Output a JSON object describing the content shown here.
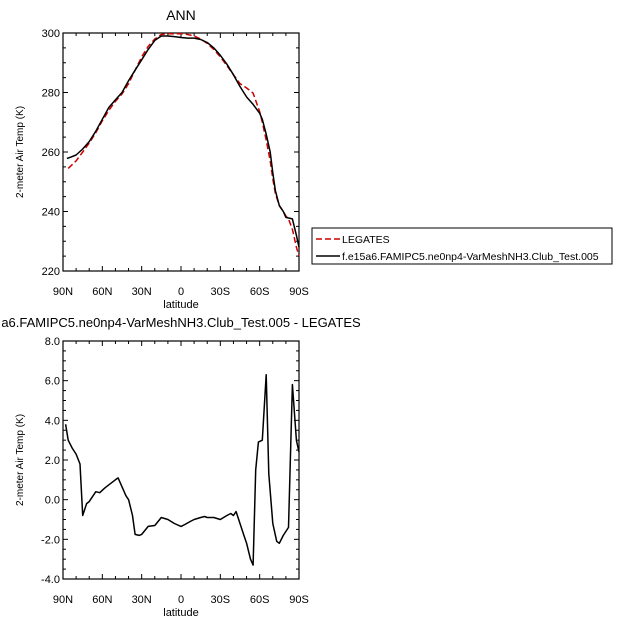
{
  "chart_data": [
    {
      "type": "line",
      "title": "ANN",
      "xlabel": "latitude",
      "ylabel": "2-meter Air Temp (K)",
      "xlim": [
        90,
        -90
      ],
      "ylim": [
        220,
        300
      ],
      "xtick_values": [
        90,
        60,
        30,
        0,
        -30,
        -60,
        -90
      ],
      "xtick_labels": [
        "90N",
        "60N",
        "30N",
        "0",
        "30S",
        "60S",
        "90S"
      ],
      "ytick_values": [
        220,
        240,
        260,
        280,
        300
      ],
      "ytick_labels": [
        "220",
        "240",
        "260",
        "280",
        "300"
      ],
      "legend": "right",
      "series": [
        {
          "name": "LEGATES",
          "color": "#cc0000",
          "style": "dashed",
          "x": [
            86,
            80,
            75,
            70,
            65,
            60,
            55,
            50,
            45,
            40,
            35,
            30,
            25,
            20,
            15,
            10,
            5,
            0,
            -5,
            -10,
            -15,
            -20,
            -25,
            -30,
            -35,
            -40,
            -45,
            -50,
            -55,
            -60,
            -62,
            -65,
            -68,
            -70,
            -72,
            -75,
            -78,
            -80,
            -82,
            -85,
            -88,
            -90
          ],
          "y": [
            254.5,
            257,
            260,
            263,
            266.5,
            270.5,
            274,
            277,
            279.5,
            283,
            287.5,
            292,
            295.5,
            298,
            299.5,
            299.8,
            299.7,
            299.8,
            299.5,
            299,
            298,
            296.5,
            294.5,
            292,
            289,
            286,
            283,
            281.5,
            279.8,
            273.5,
            270,
            264,
            257,
            251,
            246,
            242,
            240,
            238.5,
            237.5,
            234,
            228,
            225
          ]
        },
        {
          "name": "f.e15a6.FAMIPC5.ne0np4-VarMeshNH3.Club_Test.005",
          "color": "#000000",
          "style": "solid",
          "x": [
            87,
            84,
            80,
            75,
            70,
            65,
            60,
            55,
            50,
            45,
            40,
            35,
            30,
            25,
            20,
            15,
            10,
            5,
            0,
            -5,
            -10,
            -15,
            -20,
            -25,
            -30,
            -35,
            -40,
            -45,
            -50,
            -55,
            -60,
            -62,
            -65,
            -68,
            -70,
            -72,
            -75,
            -78,
            -80,
            -82,
            -85,
            -88,
            -90
          ],
          "y": [
            257.8,
            258.3,
            259,
            261,
            263.5,
            267,
            271,
            275,
            277.5,
            280,
            284,
            287.5,
            291,
            294.5,
            297.5,
            299,
            299,
            298.8,
            298.5,
            298.3,
            298.3,
            297.8,
            296.8,
            295,
            292.5,
            289.5,
            286,
            282,
            278.5,
            276,
            273,
            271,
            266,
            260,
            253,
            247,
            242,
            240,
            238,
            237.8,
            237.5,
            232,
            228
          ]
        }
      ]
    },
    {
      "type": "line",
      "title": "a6.FAMIPC5.ne0np4-VarMeshNH3.Club_Test.005 - LEGATES",
      "xlabel": "latitude",
      "ylabel": "2-meter Air Temp (K)",
      "xlim": [
        90,
        -90
      ],
      "ylim": [
        -4,
        8
      ],
      "xtick_values": [
        90,
        60,
        30,
        0,
        -30,
        -60,
        -90
      ],
      "xtick_labels": [
        "90N",
        "60N",
        "30N",
        "0",
        "30S",
        "60S",
        "90S"
      ],
      "ytick_values": [
        -4,
        -2,
        0,
        2,
        4,
        6,
        8
      ],
      "ytick_labels": [
        "-4.0",
        "-2.0",
        "0.0",
        "2.0",
        "4.0",
        "6.0",
        "8.0"
      ],
      "series": [
        {
          "color": "#000000",
          "style": "solid",
          "x": [
            88,
            86,
            83,
            80,
            77,
            75,
            72,
            70,
            65,
            62,
            58,
            55,
            52,
            50,
            48,
            46,
            42,
            40,
            37,
            35,
            32,
            30,
            25,
            20,
            15,
            10,
            5,
            0,
            -3,
            -7,
            -10,
            -15,
            -18,
            -20,
            -25,
            -30,
            -35,
            -38,
            -40,
            -42,
            -45,
            -48,
            -50,
            -53,
            -55,
            -57,
            -59,
            -62,
            -65,
            -67,
            -70,
            -73,
            -75,
            -78,
            -80,
            -82,
            -85,
            -88,
            -90
          ],
          "y": [
            3.8,
            3.0,
            2.6,
            2.3,
            1.8,
            -0.8,
            -0.2,
            -0.1,
            0.4,
            0.35,
            0.6,
            0.75,
            0.9,
            1.0,
            1.1,
            0.8,
            0.2,
            0,
            -0.8,
            -1.75,
            -1.8,
            -1.75,
            -1.35,
            -1.3,
            -0.9,
            -1.0,
            -1.2,
            -1.35,
            -1.25,
            -1.1,
            -1.0,
            -0.9,
            -0.85,
            -0.9,
            -0.9,
            -1.0,
            -0.8,
            -0.7,
            -0.8,
            -0.6,
            -1.2,
            -1.8,
            -2.2,
            -3.0,
            -3.3,
            1.5,
            2.9,
            3.0,
            6.3,
            1.3,
            -1.2,
            -2.1,
            -2.2,
            -1.8,
            -1.6,
            -1.4,
            5.8,
            3.0,
            2.4
          ]
        }
      ]
    }
  ]
}
